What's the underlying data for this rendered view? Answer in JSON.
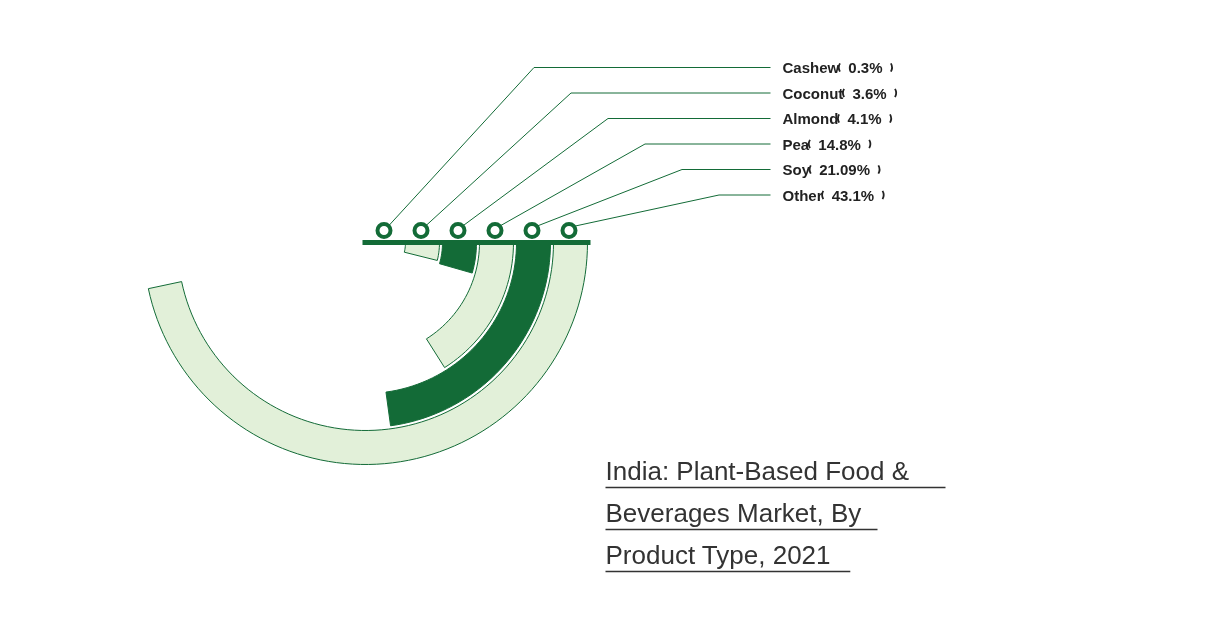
{
  "chart_data": {
    "type": "other",
    "title": "India: Plant-Based Food & Beverages Market, By Product Type, 2021",
    "categories": [
      "Cashew",
      "Coconut",
      "Almond",
      "Pea",
      "Soy",
      "Other"
    ],
    "values": [
      0.3,
      3.6,
      4.1,
      14.8,
      21.09,
      43.1
    ],
    "value_labels": [
      "0.3%",
      "3.6%",
      "4.1%",
      "14.8%",
      "21.09%",
      "43.1%"
    ],
    "colors": [
      "#136b37",
      "#e2f0d9",
      "#136b37",
      "#e2f0d9",
      "#136b37",
      "#e2f0d9"
    ]
  }
}
